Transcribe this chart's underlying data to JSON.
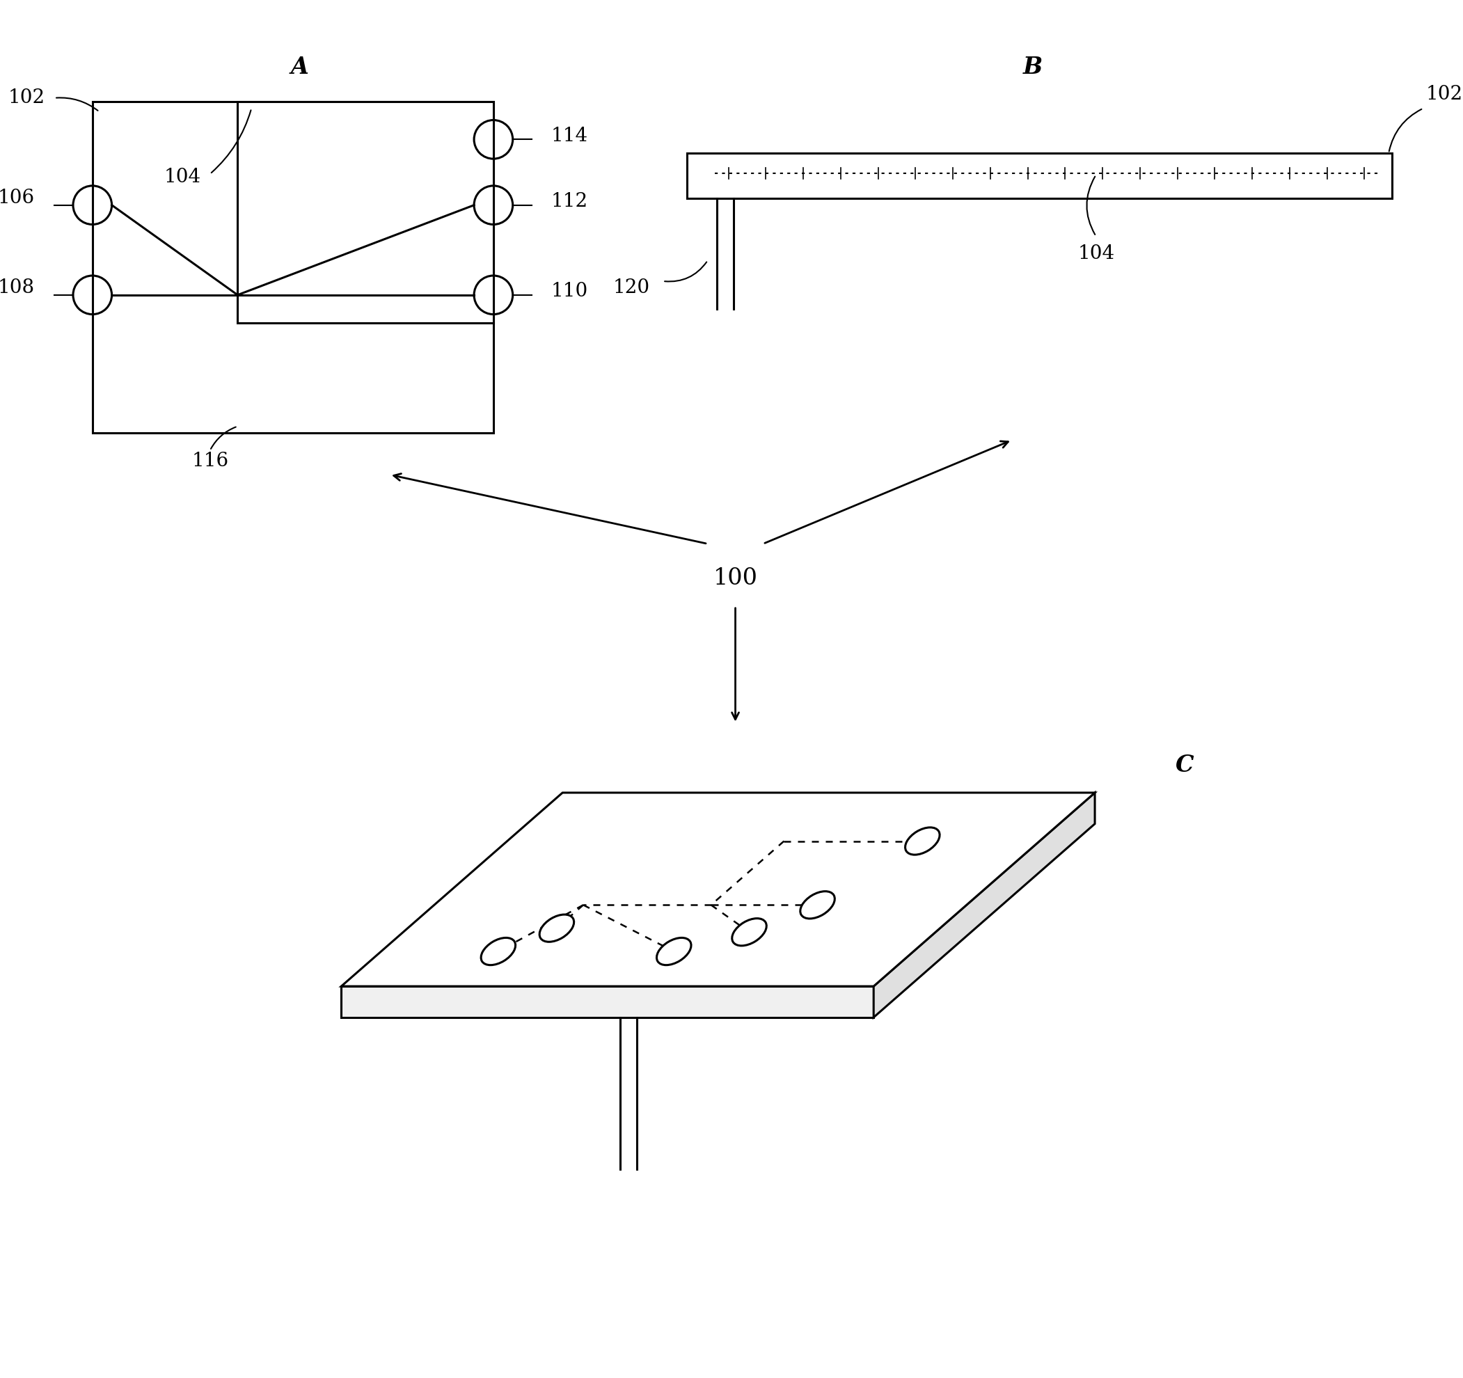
{
  "bg_color": "#ffffff",
  "label_A": "A",
  "label_B": "B",
  "label_C": "C",
  "label_100": "100",
  "lbl_102A": "102",
  "lbl_104A": "104",
  "lbl_106": "106",
  "lbl_108": "108",
  "lbl_110": "110",
  "lbl_112": "112",
  "lbl_114": "114",
  "lbl_116": "116",
  "lbl_102B": "102",
  "lbl_104B": "104",
  "lbl_120": "120",
  "lw": 2.2,
  "fs_label": 20,
  "fs_sec": 24
}
